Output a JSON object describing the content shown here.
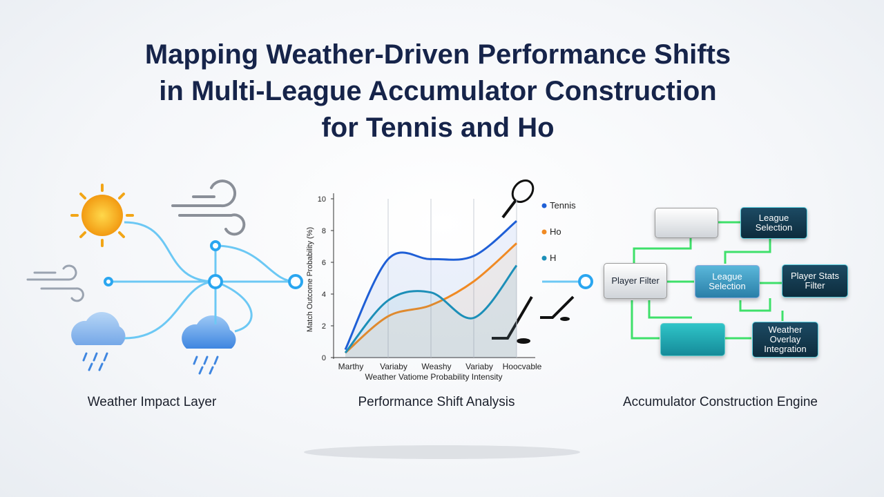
{
  "header": {
    "title_lines": [
      "Mapping Weather-Driven Performance Shifts",
      "in Multi-League Accumulator Construction",
      "for Tennis and Ho"
    ]
  },
  "panels": [
    {
      "caption": "Weather Impact Layer"
    },
    {
      "caption": "Performance Shift Analysis"
    },
    {
      "caption": "Accumulator Construction Engine"
    }
  ],
  "nodes": [
    {
      "label": "League Selection"
    },
    {
      "label": "Player Filter"
    },
    {
      "label": "League Selection"
    },
    {
      "label": "Player Stats Filter"
    },
    {
      "label": "Weather Overlay Integration"
    }
  ],
  "chart_data": {
    "type": "line",
    "y_label": "Match Outcome Probability (%)",
    "x_label": "Weather Vatiome Probability Intensity",
    "categories": [
      "Marthy",
      "Variaby",
      "Weashy",
      "Variaby",
      "Hoocvable"
    ],
    "ylim": [
      0,
      10
    ],
    "yticks": [
      0,
      2,
      4,
      6,
      8,
      10
    ],
    "grid": true,
    "series": [
      {
        "name": "Tennis",
        "color": "#1f5fd6",
        "values": [
          0.5,
          6.2,
          6.2,
          6.4,
          8.6
        ]
      },
      {
        "name": "Ho",
        "color": "#f08a24",
        "values": [
          0.3,
          2.6,
          3.3,
          4.8,
          7.2
        ]
      },
      {
        "name": "H",
        "color": "#1c8fb8",
        "values": [
          0.3,
          3.6,
          4.1,
          2.5,
          5.8
        ]
      }
    ]
  }
}
